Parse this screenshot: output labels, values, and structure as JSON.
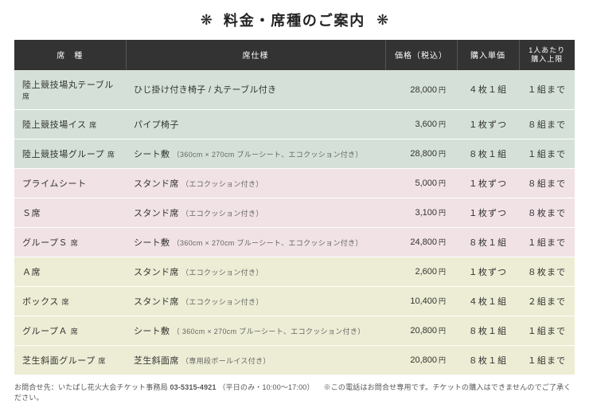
{
  "title": "料金・席種のご案内",
  "columns": {
    "type": "席　種",
    "spec": "席仕様",
    "price": "価格（税込）",
    "unit": "購入単価",
    "limit_line1": "1人あたり",
    "limit_line2": "購入上限"
  },
  "group_colors": {
    "green": "#d5e1d8",
    "pink": "#f1e2e6",
    "yellow": "#ecedd4"
  },
  "rows": [
    {
      "group": "green",
      "type": "陸上競技場丸テーブル",
      "type_suffix": "席",
      "spec": "ひじ掛け付き椅子 / 丸テーブル付き",
      "spec_sub": "",
      "price": "28,000",
      "unit": "４枚１組",
      "limit": "１組まで"
    },
    {
      "group": "green",
      "type": "陸上競技場イス",
      "type_suffix": "席",
      "spec": "パイプ椅子",
      "spec_sub": "",
      "price": "3,600",
      "unit": "１枚ずつ",
      "limit": "８組まで"
    },
    {
      "group": "green",
      "type": "陸上競技場グループ",
      "type_suffix": "席",
      "spec": "シート敷",
      "spec_sub": "（360cm × 270cm ブルーシート、エコクッション付き）",
      "price": "28,800",
      "unit": "８枚１組",
      "limit": "１組まで"
    },
    {
      "group": "pink",
      "type": "プライムシート",
      "type_suffix": "",
      "spec": "スタンド席",
      "spec_sub": "（エコクッション付き）",
      "price": "5,000",
      "unit": "１枚ずつ",
      "limit": "８組まで"
    },
    {
      "group": "pink",
      "type": "Ｓ席",
      "type_suffix": "",
      "spec": "スタンド席",
      "spec_sub": "（エコクッション付き）",
      "price": "3,100",
      "unit": "１枚ずつ",
      "limit": "８枚まで"
    },
    {
      "group": "pink",
      "type": "グループＳ",
      "type_suffix": "席",
      "spec": "シート敷",
      "spec_sub": "（360cm × 270cm ブルーシート、エコクッション付き）",
      "price": "24,800",
      "unit": "８枚１組",
      "limit": "１組まで"
    },
    {
      "group": "yellow",
      "type": "Ａ席",
      "type_suffix": "",
      "spec": "スタンド席",
      "spec_sub": "（エコクッション付き）",
      "price": "2,600",
      "unit": "１枚ずつ",
      "limit": "８枚まで"
    },
    {
      "group": "yellow",
      "type": "ボックス",
      "type_suffix": "席",
      "spec": "スタンド席",
      "spec_sub": "（エコクッション付き）",
      "price": "10,400",
      "unit": "４枚１組",
      "limit": "２組まで"
    },
    {
      "group": "yellow",
      "type": "グループＡ",
      "type_suffix": "席",
      "spec": "シート敷",
      "spec_sub": "（ 360cm × 270cm ブルーシート、エコクッション付き）",
      "price": "20,800",
      "unit": "８枚１組",
      "limit": "１組まで"
    },
    {
      "group": "yellow",
      "type": "芝生斜面グループ",
      "type_suffix": "席",
      "spec": "芝生斜面席",
      "spec_sub": "（専用段ボールイス付き）",
      "price": "20,800",
      "unit": "８枚１組",
      "limit": "１組まで"
    }
  ],
  "yen_label": "円",
  "footer": {
    "prefix": "お問合せ先：いたばし花火大会チケット事務局 ",
    "tel": "03-5315-4921",
    "hours": "（平日のみ・10:00〜17:00）",
    "note": "　※この電話はお問合せ専用です。チケットの購入はできませんのでご了承ください。"
  }
}
